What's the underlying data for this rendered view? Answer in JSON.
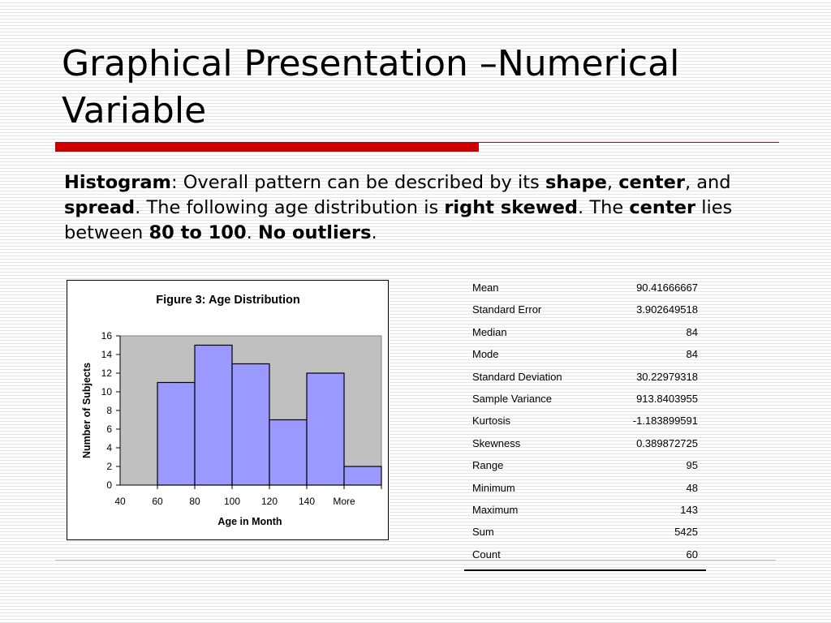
{
  "slide": {
    "title_line1": "Graphical Presentation –Numerical",
    "title_line2": "Variable"
  },
  "colors": {
    "accent_red": "#cc0000",
    "bar_fill": "#9999ff",
    "plot_area": "#c0c0c0"
  },
  "body": {
    "segments": [
      {
        "text": "Histogram",
        "bold": true
      },
      {
        "text": ": Overall pattern can be described by its ",
        "bold": false
      },
      {
        "text": "shape",
        "bold": true
      },
      {
        "text": ", ",
        "bold": false
      },
      {
        "text": "center",
        "bold": true
      },
      {
        "text": ", and ",
        "bold": false
      },
      {
        "text": "spread",
        "bold": true
      },
      {
        "text": ". The following age distribution is ",
        "bold": false
      },
      {
        "text": "right skewed",
        "bold": true
      },
      {
        "text": ". The ",
        "bold": false
      },
      {
        "text": "center",
        "bold": true
      },
      {
        "text": " lies between ",
        "bold": false
      },
      {
        "text": "80 to 100",
        "bold": true
      },
      {
        "text": ". ",
        "bold": false
      },
      {
        "text": "No outliers",
        "bold": true
      },
      {
        "text": ".",
        "bold": false
      }
    ]
  },
  "chart_data": {
    "type": "bar",
    "title": "Figure 3:  Age Distribution",
    "xlabel": "Age in Month",
    "ylabel": "Number of Subjects",
    "categories": [
      "40",
      "60",
      "80",
      "100",
      "120",
      "140",
      "More"
    ],
    "values": [
      0,
      11,
      15,
      13,
      7,
      12,
      2
    ],
    "ylim": [
      0,
      16
    ],
    "yticks": [
      0,
      2,
      4,
      6,
      8,
      10,
      12,
      14,
      16
    ],
    "grid": false,
    "legend": "none"
  },
  "stats": [
    {
      "label": "Mean",
      "value": "90.41666667"
    },
    {
      "label": "Standard Error",
      "value": "3.902649518"
    },
    {
      "label": "Median",
      "value": "84"
    },
    {
      "label": "Mode",
      "value": "84"
    },
    {
      "label": "Standard Deviation",
      "value": "30.22979318"
    },
    {
      "label": "Sample Variance",
      "value": "913.8403955"
    },
    {
      "label": "Kurtosis",
      "value": "-1.183899591"
    },
    {
      "label": "Skewness",
      "value": "0.389872725"
    },
    {
      "label": "Range",
      "value": "95"
    },
    {
      "label": "Minimum",
      "value": "48"
    },
    {
      "label": "Maximum",
      "value": "143"
    },
    {
      "label": "Sum",
      "value": "5425"
    },
    {
      "label": "Count",
      "value": "60"
    }
  ]
}
